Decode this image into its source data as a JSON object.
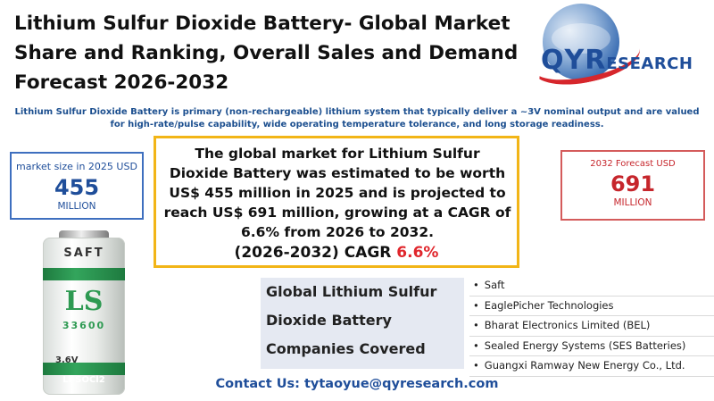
{
  "title": {
    "line1": "Lithium Sulfur Dioxide Battery- Global Market",
    "line2": "Share and Ranking, Overall Sales and Demand",
    "line3": "Forecast 2026-2032"
  },
  "logo": {
    "part1": "QYR",
    "part2": "ESEARCH"
  },
  "subtitle": "Lithium Sulfur Dioxide Battery is primary (non-rechargeable) lithium system that typically deliver a ~3V nominal output and are valued for high-rate/pulse capability, wide operating temperature tolerance, and long storage readiness.",
  "left_metric": {
    "label": "market size in 2025 USD",
    "value": "455",
    "unit": "MILLION"
  },
  "right_metric": {
    "label": "2032 Forecast  USD",
    "value": "691",
    "unit": "MILLION"
  },
  "summary": {
    "text": "The global market for Lithium Sulfur Dioxide Battery was estimated to be worth US$ 455 million in 2025 and is projected to reach US$ 691 million, growing at a CAGR of 6.6% from 2026 to 2032.",
    "cagr_label": "(2026-2032)   CAGR ",
    "cagr_value": "6.6%"
  },
  "battery": {
    "brand": "SAFT",
    "model": "LS",
    "model_number": "33600",
    "voltage": "3.6V",
    "chemistry": "Li-SOCl2"
  },
  "companies": {
    "heading_line1": "Global Lithium Sulfur",
    "heading_line2": "Dioxide Battery",
    "heading_line3": "Companies Covered",
    "items": [
      "Saft",
      "EaglePicher Technologies",
      "Bharat Electronics Limited (BEL)",
      "Sealed Energy Systems (SES Batteries)",
      "Guangxi Ramway New Energy Co., Ltd."
    ]
  },
  "contact": "Contact Us: tytaoyue@qyresearch.com",
  "colors": {
    "accent_blue": "#1f4e9a",
    "accent_red": "#c6262c",
    "highlight_border": "#f2b517"
  }
}
